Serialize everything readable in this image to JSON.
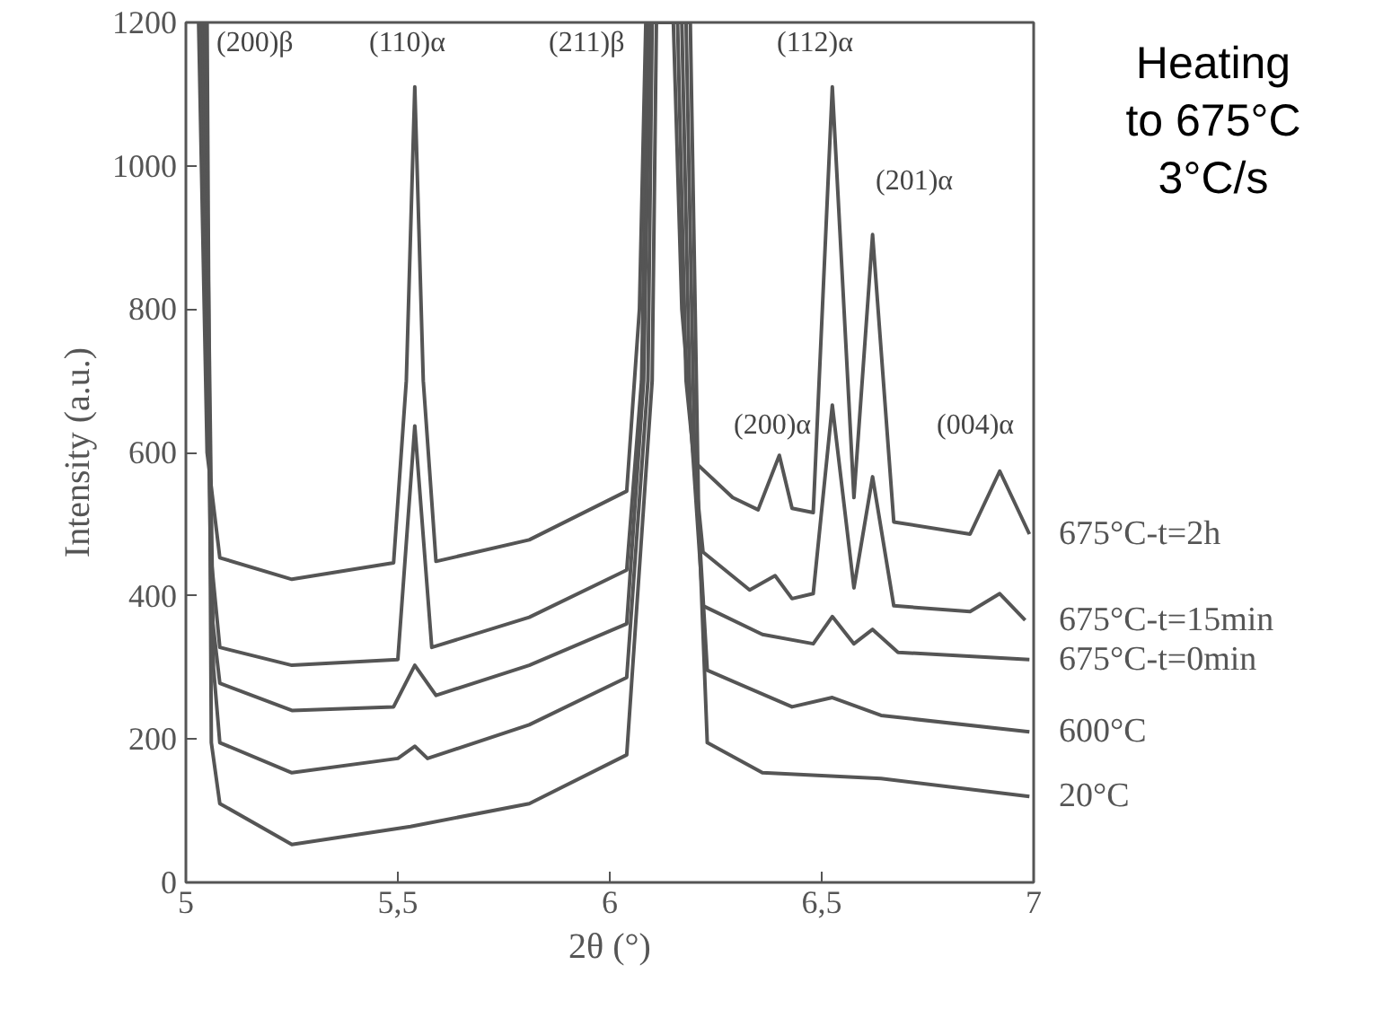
{
  "chart_data": {
    "type": "line",
    "xlabel": "2θ (°)",
    "ylabel": "Intensity (a.u.)",
    "xlim": [
      5,
      7
    ],
    "ylim": [
      0,
      1200
    ],
    "xticks": [
      5,
      {
        "value": 5.5,
        "label": "5,5"
      },
      6,
      {
        "value": 6.5,
        "label": "6,5"
      },
      7
    ],
    "yticks": [
      0,
      200,
      400,
      600,
      800,
      1000,
      1200
    ],
    "grid": false,
    "legend": false,
    "marker": "none",
    "line_style": "solid",
    "series": [
      {
        "name": "675°C-t=2h",
        "color": "#555555",
        "x": [
          5.03,
          5.05,
          5.08,
          5.25,
          5.49,
          5.52,
          5.54,
          5.56,
          5.59,
          5.81,
          6.04,
          6.07,
          6.085,
          6.15,
          6.17,
          6.2,
          6.29,
          6.35,
          6.4,
          6.43,
          6.48,
          6.525,
          6.576,
          6.62,
          6.67,
          6.85,
          6.92,
          6.99
        ],
        "values": [
          1200,
          600,
          453,
          423,
          446,
          700,
          1110,
          700,
          448,
          478,
          546,
          800,
          1200,
          1200,
          800,
          587,
          537,
          520,
          596,
          522,
          516,
          1110,
          537,
          904,
          503,
          486,
          574,
          486
        ]
      },
      {
        "name": "675°C-t=15min",
        "color": "#555555",
        "x": [
          5.035,
          5.06,
          5.08,
          5.25,
          5.5,
          5.54,
          5.58,
          5.81,
          6.04,
          6.075,
          6.09,
          6.16,
          6.18,
          6.22,
          6.33,
          6.39,
          6.43,
          6.48,
          6.525,
          6.576,
          6.62,
          6.67,
          6.85,
          6.92,
          6.98
        ],
        "values": [
          1200,
          450,
          328,
          303,
          311,
          637,
          328,
          370,
          436,
          700,
          1200,
          1200,
          700,
          461,
          408,
          428,
          396,
          403,
          666,
          411,
          566,
          386,
          378,
          403,
          366
        ]
      },
      {
        "name": "675°C-t=0min",
        "color": "#555555",
        "x": [
          5.04,
          5.06,
          5.08,
          5.25,
          5.49,
          5.54,
          5.59,
          5.81,
          6.04,
          6.08,
          6.095,
          6.17,
          6.19,
          6.22,
          6.36,
          6.48,
          6.525,
          6.576,
          6.62,
          6.68,
          6.99
        ],
        "values": [
          1200,
          380,
          278,
          240,
          245,
          303,
          261,
          303,
          361,
          700,
          1200,
          1200,
          650,
          386,
          346,
          333,
          371,
          333,
          353,
          321,
          311
        ]
      },
      {
        "name": "600°C",
        "color": "#555555",
        "x": [
          5.045,
          5.065,
          5.08,
          5.25,
          5.5,
          5.54,
          5.57,
          5.81,
          6.04,
          6.09,
          6.1,
          6.18,
          6.2,
          6.23,
          6.43,
          6.525,
          6.64,
          6.99
        ],
        "values": [
          1200,
          300,
          195,
          153,
          173,
          190,
          173,
          220,
          286,
          700,
          1200,
          1200,
          600,
          296,
          245,
          258,
          233,
          210
        ]
      },
      {
        "name": "20°C",
        "color": "#555555",
        "x": [
          5.05,
          5.06,
          5.08,
          5.25,
          5.53,
          5.81,
          6.04,
          6.1,
          6.11,
          6.19,
          6.21,
          6.23,
          6.36,
          6.64,
          6.99
        ],
        "values": [
          1200,
          195,
          110,
          53,
          78,
          110,
          178,
          700,
          1200,
          1200,
          500,
          195,
          153,
          145,
          120
        ]
      }
    ],
    "annotations": [
      "(200)β",
      "(110)α",
      "(211)β",
      "(112)α",
      "(201)α",
      "(200)α",
      "(004)α",
      "Heating",
      "to 675°C",
      "3°C/s"
    ]
  }
}
